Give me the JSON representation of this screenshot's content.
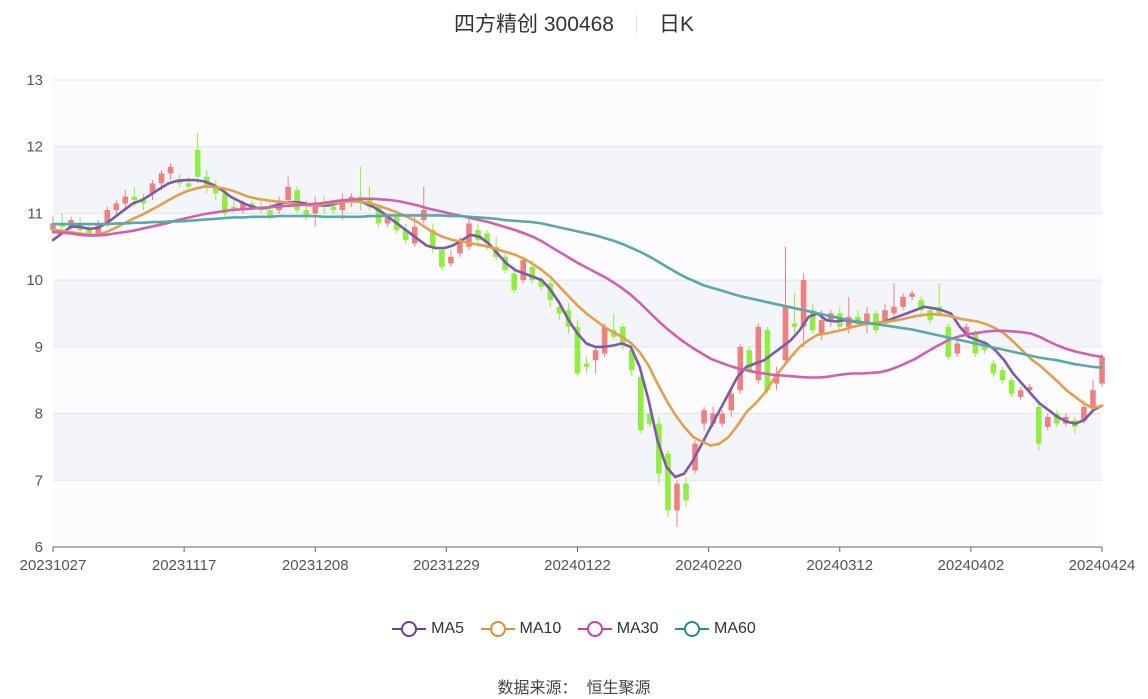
{
  "header": {
    "name": "四方精创 300468",
    "period": "日K"
  },
  "legend": [
    {
      "name": "MA5",
      "color": "#6a3fa0"
    },
    {
      "name": "MA10",
      "color": "#e08a3c"
    },
    {
      "name": "MA30",
      "color": "#c8449a"
    },
    {
      "name": "MA60",
      "color": "#2a8a8a"
    }
  ],
  "source": "数据来源：  恒生聚源",
  "colors": {
    "up": "#f08080",
    "down": "#90ee40",
    "ma5": "#7b5aa6",
    "ma10": "#e0a050",
    "ma30": "#d060b0",
    "ma60": "#5aa8a8"
  },
  "chart_data": {
    "type": "candlestick",
    "ylim": [
      6,
      13
    ],
    "yticks": [
      6,
      7,
      8,
      9,
      10,
      11,
      12,
      13
    ],
    "xticks": [
      "20231027",
      "20231117",
      "20231208",
      "20231229",
      "20240122",
      "20240220",
      "20240312",
      "20240402",
      "20240424"
    ],
    "ohlc_note": "[open, close, low, high] per trading day",
    "candles": [
      [
        10.75,
        10.85,
        10.7,
        10.95
      ],
      [
        10.85,
        10.8,
        10.75,
        11.0
      ],
      [
        10.8,
        10.9,
        10.75,
        10.95
      ],
      [
        10.85,
        10.75,
        10.7,
        10.95
      ],
      [
        10.75,
        10.7,
        10.65,
        10.85
      ],
      [
        10.7,
        10.85,
        10.65,
        10.9
      ],
      [
        10.85,
        11.05,
        10.8,
        11.1
      ],
      [
        11.05,
        11.15,
        10.95,
        11.2
      ],
      [
        11.15,
        11.25,
        11.05,
        11.35
      ],
      [
        11.25,
        11.2,
        11.1,
        11.4
      ],
      [
        11.2,
        11.15,
        11.05,
        11.3
      ],
      [
        11.3,
        11.45,
        11.2,
        11.5
      ],
      [
        11.45,
        11.6,
        11.35,
        11.65
      ],
      [
        11.6,
        11.7,
        11.5,
        11.75
      ],
      [
        11.5,
        11.45,
        11.4,
        11.6
      ],
      [
        11.45,
        11.4,
        11.35,
        11.55
      ],
      [
        11.95,
        11.55,
        11.45,
        12.2
      ],
      [
        11.55,
        11.4,
        11.3,
        11.65
      ],
      [
        11.4,
        11.3,
        11.2,
        11.5
      ],
      [
        11.3,
        11.0,
        10.95,
        11.35
      ],
      [
        11.1,
        11.05,
        11.0,
        11.2
      ],
      [
        11.05,
        11.15,
        11.0,
        11.2
      ],
      [
        11.15,
        11.1,
        11.05,
        11.2
      ],
      [
        11.1,
        11.05,
        11.0,
        11.2
      ],
      [
        11.05,
        10.95,
        10.9,
        11.2
      ],
      [
        11.05,
        11.15,
        11.0,
        11.25
      ],
      [
        11.2,
        11.4,
        11.1,
        11.55
      ],
      [
        11.35,
        11.05,
        11.0,
        11.4
      ],
      [
        11.05,
        10.95,
        10.9,
        11.2
      ],
      [
        11.0,
        11.15,
        10.8,
        11.25
      ],
      [
        11.15,
        11.1,
        11.0,
        11.25
      ],
      [
        11.1,
        11.05,
        11.0,
        11.2
      ],
      [
        11.05,
        11.2,
        10.9,
        11.3
      ],
      [
        11.2,
        11.25,
        11.1,
        11.3
      ],
      [
        11.25,
        11.15,
        11.05,
        11.7
      ],
      [
        11.2,
        11.1,
        11.05,
        11.4
      ],
      [
        11.1,
        10.85,
        10.8,
        11.15
      ],
      [
        10.85,
        10.95,
        10.8,
        11.0
      ],
      [
        10.95,
        10.75,
        10.7,
        11.05
      ],
      [
        10.75,
        10.6,
        10.55,
        10.85
      ],
      [
        10.55,
        10.8,
        10.5,
        10.95
      ],
      [
        10.9,
        11.05,
        10.85,
        11.4
      ],
      [
        10.75,
        10.5,
        10.4,
        10.85
      ],
      [
        10.45,
        10.2,
        10.15,
        10.5
      ],
      [
        10.25,
        10.35,
        10.2,
        10.45
      ],
      [
        10.4,
        10.6,
        10.35,
        10.65
      ],
      [
        10.5,
        10.85,
        10.45,
        10.95
      ],
      [
        10.75,
        10.6,
        10.5,
        10.85
      ],
      [
        10.7,
        10.55,
        10.45,
        10.75
      ],
      [
        10.5,
        10.35,
        10.3,
        10.65
      ],
      [
        10.35,
        10.15,
        10.1,
        10.4
      ],
      [
        10.1,
        9.85,
        9.8,
        10.2
      ],
      [
        10.0,
        10.3,
        9.95,
        10.35
      ],
      [
        10.2,
        10.0,
        9.95,
        10.3
      ],
      [
        10.0,
        9.9,
        9.85,
        10.05
      ],
      [
        9.95,
        9.7,
        9.6,
        10.0
      ],
      [
        9.6,
        9.5,
        9.4,
        9.7
      ],
      [
        9.55,
        9.3,
        9.2,
        9.65
      ],
      [
        9.3,
        8.6,
        8.55,
        9.4
      ],
      [
        8.75,
        8.7,
        8.6,
        8.85
      ],
      [
        8.8,
        8.95,
        8.6,
        9.0
      ],
      [
        8.9,
        9.3,
        8.85,
        9.35
      ],
      [
        9.25,
        9.15,
        9.1,
        9.5
      ],
      [
        9.3,
        9.05,
        8.95,
        9.35
      ],
      [
        8.95,
        8.65,
        8.55,
        9.05
      ],
      [
        8.55,
        7.75,
        7.7,
        8.6
      ],
      [
        8.0,
        7.85,
        7.8,
        8.1
      ],
      [
        7.85,
        7.1,
        6.95,
        7.95
      ],
      [
        7.4,
        6.55,
        6.45,
        7.45
      ],
      [
        6.55,
        6.95,
        6.3,
        7.0
      ],
      [
        6.95,
        6.7,
        6.6,
        7.05
      ],
      [
        7.15,
        7.55,
        7.1,
        7.6
      ],
      [
        7.85,
        8.05,
        7.75,
        8.1
      ],
      [
        7.85,
        8.0,
        7.8,
        8.1
      ],
      [
        7.85,
        8.0,
        7.8,
        8.05
      ],
      [
        8.05,
        8.3,
        7.95,
        8.35
      ],
      [
        8.35,
        9.0,
        8.3,
        9.05
      ],
      [
        8.95,
        8.65,
        8.6,
        9.0
      ],
      [
        8.5,
        9.3,
        8.45,
        9.35
      ],
      [
        9.25,
        8.35,
        8.3,
        9.3
      ],
      [
        8.45,
        8.6,
        8.35,
        8.7
      ],
      [
        8.8,
        9.6,
        8.75,
        10.5
      ],
      [
        9.35,
        9.3,
        9.2,
        9.8
      ],
      [
        9.3,
        10.0,
        9.0,
        10.1
      ],
      [
        9.55,
        9.25,
        9.2,
        9.65
      ],
      [
        9.2,
        9.4,
        9.1,
        9.55
      ],
      [
        9.4,
        9.5,
        9.3,
        9.55
      ],
      [
        9.5,
        9.3,
        9.25,
        9.6
      ],
      [
        9.3,
        9.45,
        9.2,
        9.75
      ],
      [
        9.45,
        9.35,
        9.3,
        9.55
      ],
      [
        9.35,
        9.5,
        9.2,
        9.6
      ],
      [
        9.5,
        9.25,
        9.2,
        9.55
      ],
      [
        9.35,
        9.55,
        9.3,
        9.65
      ],
      [
        9.5,
        9.6,
        9.45,
        9.95
      ],
      [
        9.6,
        9.75,
        9.55,
        9.8
      ],
      [
        9.75,
        9.8,
        9.7,
        9.85
      ],
      [
        9.7,
        9.55,
        9.5,
        9.75
      ],
      [
        9.55,
        9.4,
        9.35,
        9.6
      ],
      [
        9.6,
        9.5,
        9.45,
        9.95
      ],
      [
        9.3,
        8.85,
        8.8,
        9.35
      ],
      [
        8.9,
        9.05,
        8.85,
        9.1
      ],
      [
        9.2,
        9.3,
        9.15,
        9.35
      ],
      [
        9.2,
        8.9,
        8.85,
        9.25
      ],
      [
        9.0,
        8.95,
        8.9,
        9.1
      ],
      [
        8.75,
        8.6,
        8.55,
        8.8
      ],
      [
        8.65,
        8.5,
        8.45,
        8.7
      ],
      [
        8.5,
        8.3,
        8.25,
        8.55
      ],
      [
        8.25,
        8.35,
        8.2,
        8.4
      ],
      [
        8.35,
        8.4,
        8.3,
        8.45
      ],
      [
        8.1,
        7.55,
        7.45,
        8.15
      ],
      [
        7.8,
        7.95,
        7.75,
        8.0
      ],
      [
        8.0,
        7.85,
        7.8,
        8.05
      ],
      [
        7.85,
        7.95,
        7.8,
        8.0
      ],
      [
        7.9,
        7.8,
        7.7,
        7.95
      ],
      [
        7.9,
        8.1,
        7.85,
        8.2
      ],
      [
        8.1,
        8.35,
        8.0,
        8.5
      ],
      [
        8.45,
        8.85,
        8.4,
        8.9
      ]
    ],
    "series": [
      {
        "name": "MA5",
        "values": [
          10.6,
          10.7,
          10.8,
          10.8,
          10.77,
          10.78,
          10.85,
          10.95,
          11.05,
          11.15,
          11.2,
          11.28,
          11.37,
          11.45,
          11.49,
          11.5,
          11.5,
          11.48,
          11.43,
          11.35,
          11.25,
          11.18,
          11.12,
          11.08,
          11.08,
          11.12,
          11.16,
          11.17,
          11.16,
          11.13,
          11.12,
          11.12,
          11.15,
          11.18,
          11.2,
          11.16,
          11.1,
          11.02,
          10.92,
          10.82,
          10.72,
          10.62,
          10.52,
          10.48,
          10.48,
          10.52,
          10.6,
          10.68,
          10.65,
          10.55,
          10.4,
          10.25,
          10.15,
          10.1,
          10.05,
          10.0,
          9.85,
          9.65,
          9.4,
          9.2,
          9.05,
          9.0,
          9.0,
          9.02,
          9.05,
          9.0,
          8.7,
          8.2,
          7.6,
          7.2,
          7.05,
          7.1,
          7.3,
          7.55,
          7.8,
          8.05,
          8.3,
          8.55,
          8.7,
          8.75,
          8.8,
          8.9,
          9.0,
          9.1,
          9.25,
          9.45,
          9.5,
          9.4,
          9.38,
          9.4,
          9.38,
          9.36,
          9.35,
          9.36,
          9.4,
          9.45,
          9.5,
          9.55,
          9.6,
          9.58,
          9.55,
          9.5,
          9.3,
          9.15,
          9.1,
          9.05,
          8.95,
          8.8,
          8.6,
          8.45,
          8.3,
          8.15,
          8.05,
          7.95,
          7.88,
          7.85,
          7.9,
          8.05,
          8.12
        ]
      },
      {
        "name": "MA10",
        "values": [
          10.75,
          10.74,
          10.72,
          10.7,
          10.68,
          10.68,
          10.72,
          10.78,
          10.85,
          10.92,
          10.98,
          11.05,
          11.12,
          11.2,
          11.27,
          11.33,
          11.37,
          11.4,
          11.4,
          11.38,
          11.35,
          11.3,
          11.25,
          11.22,
          11.2,
          11.18,
          11.17,
          11.15,
          11.13,
          11.12,
          11.13,
          11.15,
          11.16,
          11.18,
          11.18,
          11.17,
          11.14,
          11.1,
          11.05,
          11.0,
          10.94,
          10.87,
          10.78,
          10.7,
          10.64,
          10.6,
          10.58,
          10.55,
          10.53,
          10.5,
          10.46,
          10.42,
          10.38,
          10.32,
          10.24,
          10.15,
          10.04,
          9.9,
          9.76,
          9.62,
          9.5,
          9.4,
          9.3,
          9.22,
          9.15,
          9.06,
          8.92,
          8.72,
          8.45,
          8.2,
          7.98,
          7.8,
          7.65,
          7.58,
          7.52,
          7.55,
          7.65,
          7.82,
          8.02,
          8.15,
          8.3,
          8.5,
          8.68,
          8.85,
          9.0,
          9.1,
          9.18,
          9.2,
          9.23,
          9.26,
          9.3,
          9.33,
          9.35,
          9.37,
          9.38,
          9.4,
          9.43,
          9.46,
          9.48,
          9.49,
          9.48,
          9.46,
          9.42,
          9.4,
          9.38,
          9.34,
          9.28,
          9.2,
          9.08,
          8.95,
          8.82,
          8.72,
          8.6,
          8.48,
          8.35,
          8.25,
          8.15,
          8.08,
          8.12
        ]
      },
      {
        "name": "MA30",
        "values": [
          10.72,
          10.71,
          10.7,
          10.68,
          10.67,
          10.67,
          10.68,
          10.7,
          10.72,
          10.74,
          10.77,
          10.8,
          10.83,
          10.86,
          10.9,
          10.93,
          10.96,
          10.99,
          11.01,
          11.03,
          11.05,
          11.06,
          11.07,
          11.08,
          11.09,
          11.1,
          11.11,
          11.12,
          11.13,
          11.14,
          11.15,
          11.17,
          11.19,
          11.2,
          11.21,
          11.22,
          11.22,
          11.21,
          11.2,
          11.18,
          11.15,
          11.12,
          11.08,
          11.05,
          11.02,
          10.99,
          10.96,
          10.93,
          10.9,
          10.87,
          10.83,
          10.79,
          10.75,
          10.7,
          10.65,
          10.58,
          10.5,
          10.42,
          10.34,
          10.26,
          10.19,
          10.12,
          10.05,
          9.97,
          9.88,
          9.78,
          9.66,
          9.53,
          9.4,
          9.28,
          9.17,
          9.07,
          8.98,
          8.9,
          8.82,
          8.77,
          8.72,
          8.68,
          8.65,
          8.62,
          8.6,
          8.58,
          8.57,
          8.56,
          8.55,
          8.54,
          8.54,
          8.55,
          8.57,
          8.59,
          8.6,
          8.6,
          8.61,
          8.62,
          8.65,
          8.7,
          8.76,
          8.82,
          8.9,
          8.98,
          9.05,
          9.12,
          9.16,
          9.19,
          9.21,
          9.23,
          9.24,
          9.24,
          9.23,
          9.22,
          9.2,
          9.15,
          9.08,
          9.02,
          8.97,
          8.93,
          8.9,
          8.87,
          8.85
        ]
      },
      {
        "name": "MA60",
        "values": [
          10.84,
          10.84,
          10.84,
          10.84,
          10.84,
          10.84,
          10.84,
          10.85,
          10.85,
          10.86,
          10.86,
          10.87,
          10.87,
          10.88,
          10.88,
          10.89,
          10.9,
          10.91,
          10.92,
          10.93,
          10.94,
          10.94,
          10.95,
          10.95,
          10.95,
          10.96,
          10.96,
          10.96,
          10.96,
          10.96,
          10.95,
          10.95,
          10.95,
          10.95,
          10.95,
          10.96,
          10.96,
          10.97,
          10.97,
          10.97,
          10.97,
          10.97,
          10.97,
          10.97,
          10.96,
          10.96,
          10.95,
          10.94,
          10.93,
          10.92,
          10.9,
          10.89,
          10.88,
          10.87,
          10.85,
          10.82,
          10.79,
          10.76,
          10.73,
          10.7,
          10.67,
          10.63,
          10.59,
          10.54,
          10.48,
          10.42,
          10.35,
          10.27,
          10.19,
          10.11,
          10.04,
          9.98,
          9.92,
          9.88,
          9.84,
          9.8,
          9.76,
          9.73,
          9.7,
          9.67,
          9.64,
          9.61,
          9.58,
          9.55,
          9.52,
          9.49,
          9.46,
          9.43,
          9.4,
          9.38,
          9.36,
          9.34,
          9.32,
          9.3,
          9.28,
          9.26,
          9.23,
          9.2,
          9.17,
          9.14,
          9.11,
          9.08,
          9.05,
          9.02,
          8.99,
          8.96,
          8.93,
          8.9,
          8.87,
          8.84,
          8.82,
          8.8,
          8.77,
          8.74,
          8.72,
          8.7,
          8.69
        ]
      }
    ]
  }
}
